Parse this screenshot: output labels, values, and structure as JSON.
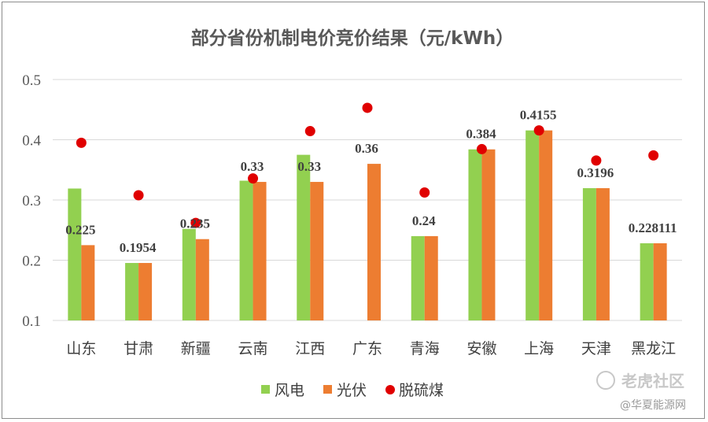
{
  "chart_data": {
    "type": "bar",
    "title": "部分省份机制电价竞价结果（元/kWh）",
    "categories": [
      "山东",
      "甘肃",
      "新疆",
      "云南",
      "江西",
      "广东",
      "青海",
      "安徽",
      "上海",
      "天津",
      "黑龙江"
    ],
    "ylim": [
      0.1,
      0.5
    ],
    "yticks": [
      "0.1",
      "0.2",
      "0.3",
      "0.4",
      "0.5"
    ],
    "grid": true,
    "legend_position": "bottom",
    "series": [
      {
        "name": "风电",
        "kind": "bar",
        "color": "#92d050",
        "values": [
          0.319,
          0.1954,
          0.252,
          0.332,
          0.375,
          null,
          0.24,
          0.384,
          0.4155,
          0.3196,
          0.228111
        ]
      },
      {
        "name": "光伏",
        "kind": "bar",
        "color": "#ed7d31",
        "values": [
          0.225,
          0.1954,
          0.235,
          0.33,
          0.33,
          0.36,
          0.24,
          0.384,
          0.4155,
          0.3196,
          0.228111
        ]
      },
      {
        "name": "脱硫煤",
        "kind": "scatter",
        "color": "#e00000",
        "values": [
          0.3949,
          0.3078,
          0.262,
          0.3358,
          0.4143,
          0.453,
          0.3124,
          0.3844,
          0.4155,
          0.3655,
          0.374
        ]
      }
    ],
    "data_labels": [
      "0.225",
      "0.1954",
      "0.235",
      "0.33",
      "0.33",
      "0.36",
      "0.24",
      "0.384",
      "0.4155",
      "0.3196",
      "0.228111"
    ]
  },
  "watermark": {
    "line1": "老虎社区",
    "line2": "@华夏能源网"
  }
}
